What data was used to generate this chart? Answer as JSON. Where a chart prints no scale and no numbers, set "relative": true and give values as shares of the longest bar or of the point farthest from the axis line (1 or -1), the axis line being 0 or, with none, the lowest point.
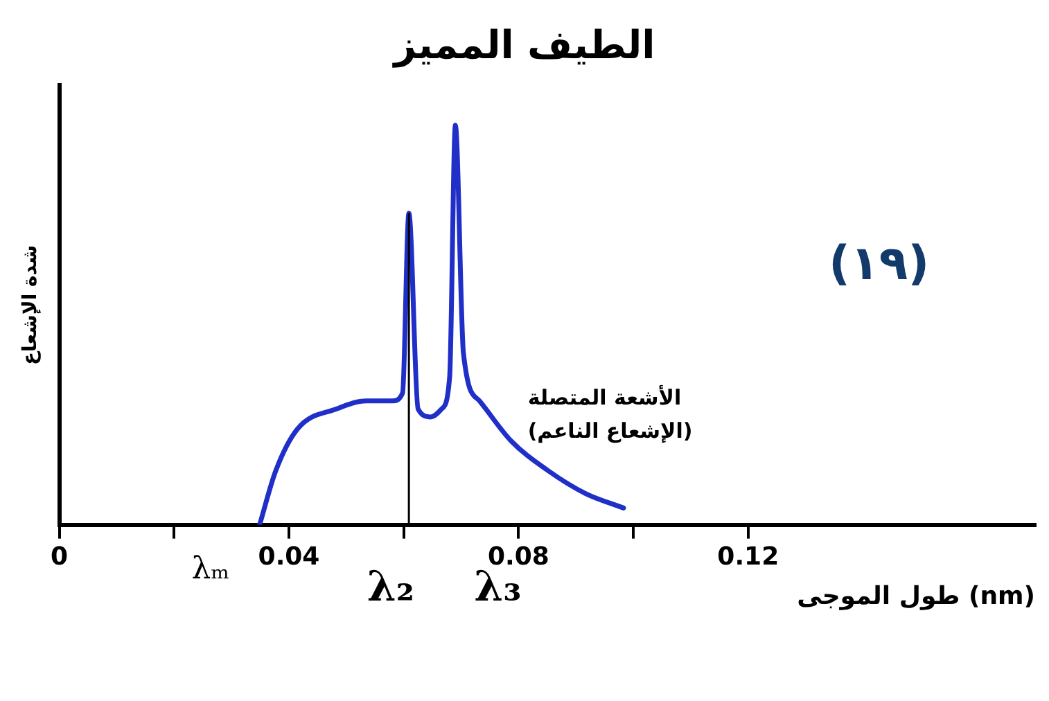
{
  "chart_data": {
    "type": "line",
    "title": "الطيف المميز",
    "xlabel": "طول الموجى (nm)",
    "ylabel": "شدة الإشعاع",
    "relative": true,
    "x": [
      0.0349,
      0.0377,
      0.0415,
      0.0483,
      0.0535,
      0.058,
      0.0598,
      0.0609,
      0.0625,
      0.0647,
      0.0666,
      0.068,
      0.069,
      0.0704,
      0.0732,
      0.0787,
      0.0852,
      0.0917,
      0.0983
    ],
    "series": [
      {
        "color": "#1f2fc8",
        "values": [
          0,
          0.135,
          0.24,
          0.29,
          0.31,
          0.31,
          0.33,
          0.78,
          0.29,
          0.27,
          0.29,
          0.37,
          1,
          0.43,
          0.31,
          0.21,
          0.135,
          0.078,
          0.042
        ]
      }
    ],
    "xlim": [
      0,
      0.17
    ],
    "xticks": [
      0,
      {
        "value": 0.02,
        "label": null
      },
      0.04,
      {
        "value": 0.06,
        "label": null
      },
      0.08,
      {
        "value": 0.1,
        "label": null
      },
      0.12
    ],
    "marker": "none",
    "legend": false,
    "ref_lines": [
      {
        "axis": "x",
        "value": 0.0609,
        "label": "λ₂",
        "color": "#000000"
      }
    ],
    "annotations": [
      "(١٩)",
      "الأشعة المتصلة (الإشعاع الناعم)",
      "λₘ",
      "λ₃"
    ]
  }
}
